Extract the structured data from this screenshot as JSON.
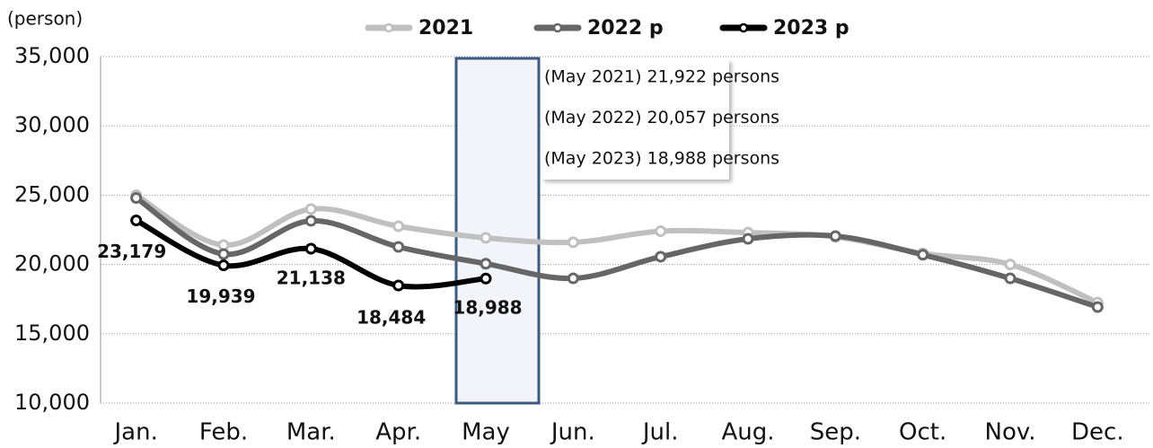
{
  "chart_data": {
    "type": "line",
    "y_axis_label": "(person)",
    "categories": [
      "Jan.",
      "Feb.",
      "Mar.",
      "Apr.",
      "May",
      "Jun.",
      "Jul.",
      "Aug.",
      "Sep.",
      "Oct.",
      "Nov.",
      "Dec."
    ],
    "series": [
      {
        "name": "2021",
        "color": "#c0c0c0",
        "values": [
          25000,
          21400,
          24000,
          22760,
          21922,
          21600,
          22400,
          22300,
          22000,
          20800,
          20000,
          17250
        ]
      },
      {
        "name": "2022 p",
        "color": "#666666",
        "values": [
          24800,
          20750,
          23150,
          21270,
          20057,
          19000,
          20560,
          21850,
          22050,
          20700,
          19000,
          16930
        ]
      },
      {
        "name": "2023 p",
        "color": "#000000",
        "values": [
          23179,
          19939,
          21138,
          18484,
          18988,
          null,
          null,
          null,
          null,
          null,
          null,
          null
        ],
        "value_labels": [
          "23,179",
          "19,939",
          "21,138",
          "18,484",
          "18,988",
          null,
          null,
          null,
          null,
          null,
          null,
          null
        ]
      }
    ],
    "ylim": [
      10000,
      35000
    ],
    "yticks": [
      {
        "value": 10000,
        "label": "10,000"
      },
      {
        "value": 15000,
        "label": "15,000"
      },
      {
        "value": 20000,
        "label": "20,000"
      },
      {
        "value": 25000,
        "label": "25,000"
      },
      {
        "value": 30000,
        "label": "30,000"
      },
      {
        "value": 35000,
        "label": "35,000"
      }
    ],
    "grid": true,
    "annotations": [
      "(May 2021) 21,922 persons",
      "(May 2022) 20,057 persons",
      "(May 2023) 18,988 persons"
    ]
  }
}
